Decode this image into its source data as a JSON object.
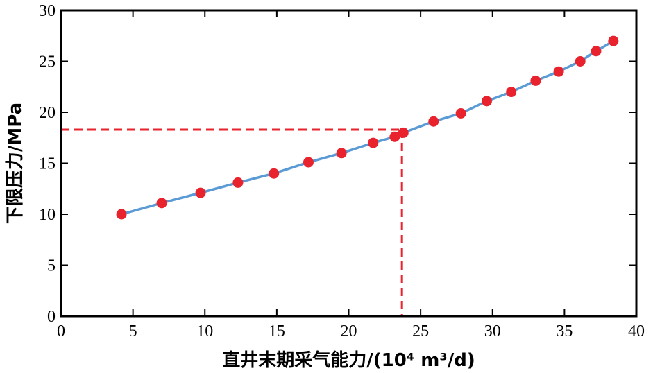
{
  "chart_data": {
    "type": "scatter",
    "xlabel": "直井末期采气能力/(10⁴ m³/d)",
    "ylabel": "下限压力/MPa",
    "xlim": [
      0,
      40
    ],
    "ylim": [
      0,
      30
    ],
    "xticks": [
      "0",
      "5",
      "10",
      "15",
      "20",
      "25",
      "30",
      "35",
      "40"
    ],
    "yticks": [
      "0",
      "5",
      "10",
      "15",
      "20",
      "25",
      "30"
    ],
    "grid": false,
    "series": [
      {
        "values": [
          {
            "x": 4.2,
            "y": 10.0
          },
          {
            "x": 7.0,
            "y": 11.1
          },
          {
            "x": 9.7,
            "y": 12.1
          },
          {
            "x": 12.3,
            "y": 13.1
          },
          {
            "x": 14.8,
            "y": 14.0
          },
          {
            "x": 17.2,
            "y": 15.1
          },
          {
            "x": 19.5,
            "y": 16.0
          },
          {
            "x": 21.7,
            "y": 17.0
          },
          {
            "x": 23.2,
            "y": 17.6
          },
          {
            "x": 23.8,
            "y": 18.0
          },
          {
            "x": 25.9,
            "y": 19.1
          },
          {
            "x": 27.8,
            "y": 19.9
          },
          {
            "x": 29.6,
            "y": 21.1
          },
          {
            "x": 31.3,
            "y": 22.0
          },
          {
            "x": 33.0,
            "y": 23.1
          },
          {
            "x": 34.6,
            "y": 24.0
          },
          {
            "x": 36.1,
            "y": 25.0
          },
          {
            "x": 37.2,
            "y": 26.0
          },
          {
            "x": 38.4,
            "y": 27.0
          }
        ]
      }
    ],
    "reference_point": {
      "x": 23.7,
      "y": 18.3
    },
    "colors": {
      "marker": "#e8232e",
      "line": "#5b9bd5",
      "reference": "#e8232e",
      "axis": "#000000"
    }
  }
}
